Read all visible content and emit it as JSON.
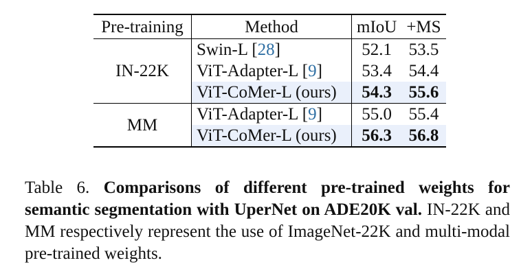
{
  "table": {
    "headers": {
      "pretraining": "Pre-training",
      "method": "Method",
      "miou": "mIoU",
      "ms": "+MS"
    },
    "groups": [
      {
        "name": "IN-22K",
        "rows": [
          {
            "method": "Swin-L",
            "cite": "28",
            "miou": "52.1",
            "ms": "53.5",
            "highlight": false
          },
          {
            "method": "ViT-Adapter-L",
            "cite": "9",
            "miou": "53.4",
            "ms": "54.4",
            "highlight": false
          },
          {
            "method": "ViT-CoMer-L (ours)",
            "cite": "",
            "miou": "54.3",
            "ms": "55.6",
            "highlight": true
          }
        ]
      },
      {
        "name": "MM",
        "rows": [
          {
            "method": "ViT-Adapter-L",
            "cite": "9",
            "miou": "55.0",
            "ms": "55.4",
            "highlight": false
          },
          {
            "method": "ViT-CoMer-L (ours)",
            "cite": "",
            "miou": "56.3",
            "ms": "56.8",
            "highlight": true
          }
        ]
      }
    ]
  },
  "caption": {
    "label": "Table 6.",
    "bold": "Comparisons of different pre-trained weights for semantic segmentation with UperNet on ADE20K val.",
    "text": "IN-22K and MM respectively represent the use of ImageNet-22K and multi-modal pre-trained weights."
  }
}
